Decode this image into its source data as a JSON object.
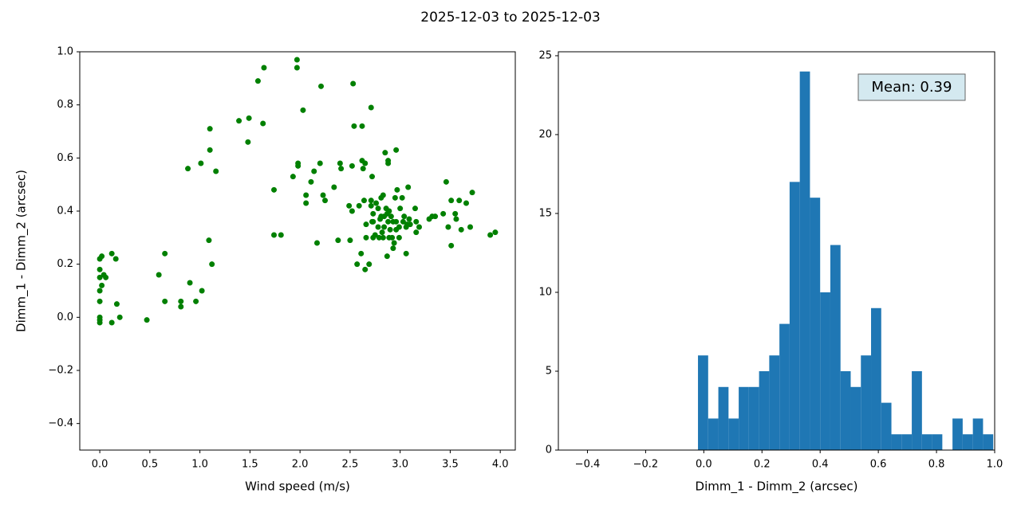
{
  "title": "2025-12-03 to 2025-12-03",
  "chart_data": [
    {
      "type": "scatter",
      "color": "green",
      "xlabel": "Wind speed (m/s)",
      "ylabel": "Dimm_1 - Dimm_2 (arcsec)",
      "xlim": [
        -0.2,
        4.15
      ],
      "ylim": [
        -0.5,
        1.0
      ],
      "xticks": [
        {
          "value": 0,
          "label": "0.0"
        },
        {
          "value": 0.5,
          "label": "0.5"
        },
        {
          "value": 1,
          "label": "1.0"
        },
        {
          "value": 1.5,
          "label": "1.5"
        },
        {
          "value": 2,
          "label": "2.0"
        },
        {
          "value": 2.5,
          "label": "2.5"
        },
        {
          "value": 3,
          "label": "3.0"
        },
        {
          "value": 3.5,
          "label": "3.5"
        },
        {
          "value": 4,
          "label": "4.0"
        }
      ],
      "yticks": [
        {
          "value": -0.4,
          "label": "−0.4"
        },
        {
          "value": -0.2,
          "label": "−0.2"
        },
        {
          "value": 0,
          "label": "0.0"
        },
        {
          "value": 0.2,
          "label": "0.2"
        },
        {
          "value": 0.4,
          "label": "0.4"
        },
        {
          "value": 0.6,
          "label": "0.6"
        },
        {
          "value": 0.8,
          "label": "0.8"
        },
        {
          "value": 1,
          "label": "1.0"
        }
      ],
      "x": [
        0,
        0.02,
        0.12,
        0.16,
        0,
        0.04,
        0.06,
        0,
        0.02,
        0,
        0,
        0.17,
        0,
        0,
        0,
        0.2,
        0.12,
        0.47,
        0.59,
        0.65,
        0.65,
        0.81,
        0.81,
        0.9,
        0.96,
        1.02,
        1.09,
        1.12,
        0.88,
        1.01,
        1.1,
        1.1,
        1.16,
        1.39,
        1.49,
        1.48,
        1.58,
        1.64,
        1.63,
        1.74,
        1.74,
        1.81,
        1.97,
        1.97,
        2.03,
        1.93,
        1.98,
        1.98,
        2.06,
        2.06,
        2.11,
        2.14,
        2.17,
        2.21,
        2.2,
        2.23,
        2.25,
        2.34,
        2.38,
        2.4,
        2.41,
        2.5,
        2.49,
        2.52,
        2.52,
        2.53,
        2.54,
        2.59,
        2.57,
        2.61,
        2.62,
        2.63,
        2.62,
        2.65,
        2.64,
        2.65,
        2.66,
        2.66,
        2.69,
        2.71,
        2.71,
        2.72,
        2.71,
        2.72,
        2.73,
        2.73,
        2.73,
        2.75,
        2.76,
        2.78,
        2.78,
        2.79,
        2.8,
        2.81,
        2.81,
        2.82,
        2.83,
        2.83,
        2.84,
        2.84,
        2.85,
        2.86,
        2.87,
        2.87,
        2.88,
        2.88,
        2.88,
        2.89,
        2.89,
        2.9,
        2.91,
        2.92,
        2.93,
        2.93,
        2.94,
        2.95,
        2.96,
        2.96,
        2.96,
        2.97,
        2.99,
        2.99,
        3.0,
        3.02,
        3.03,
        3.04,
        3.06,
        3.06,
        3.07,
        3.08,
        3.09,
        3.1,
        3.15,
        3.16,
        3.16,
        3.19,
        3.29,
        3.32,
        3.35,
        3.43,
        3.46,
        3.48,
        3.51,
        3.51,
        3.55,
        3.56,
        3.59,
        3.61,
        3.66,
        3.7,
        3.72,
        3.9,
        3.95
      ],
      "values": [
        0.22,
        0.23,
        0.24,
        0.22,
        0.18,
        0.16,
        0.15,
        0.15,
        0.12,
        0.1,
        0.06,
        0.05,
        0,
        -0.01,
        -0.02,
        0,
        -0.02,
        -0.01,
        0.16,
        0.24,
        0.06,
        0.06,
        0.04,
        0.13,
        0.06,
        0.1,
        0.29,
        0.2,
        0.56,
        0.58,
        0.63,
        0.71,
        0.55,
        0.74,
        0.75,
        0.66,
        0.89,
        0.94,
        0.73,
        0.48,
        0.31,
        0.31,
        0.97,
        0.94,
        0.78,
        0.53,
        0.58,
        0.57,
        0.46,
        0.43,
        0.51,
        0.55,
        0.28,
        0.87,
        0.58,
        0.46,
        0.44,
        0.49,
        0.29,
        0.58,
        0.56,
        0.29,
        0.42,
        0.4,
        0.57,
        0.88,
        0.72,
        0.42,
        0.2,
        0.24,
        0.59,
        0.56,
        0.72,
        0.58,
        0.44,
        0.18,
        0.35,
        0.3,
        0.2,
        0.79,
        0.44,
        0.53,
        0.42,
        0.36,
        0.36,
        0.39,
        0.3,
        0.31,
        0.43,
        0.41,
        0.34,
        0.3,
        0.37,
        0.45,
        0.38,
        0.32,
        0.46,
        0.3,
        0.38,
        0.34,
        0.62,
        0.41,
        0.23,
        0.39,
        0.59,
        0.58,
        0.36,
        0.3,
        0.4,
        0.33,
        0.38,
        0.3,
        0.36,
        0.26,
        0.28,
        0.45,
        0.33,
        0.63,
        0.36,
        0.48,
        0.34,
        0.3,
        0.41,
        0.45,
        0.36,
        0.38,
        0.34,
        0.24,
        0.35,
        0.49,
        0.37,
        0.35,
        0.41,
        0.36,
        0.32,
        0.34,
        0.37,
        0.38,
        0.38,
        0.39,
        0.51,
        0.34,
        0.27,
        0.44,
        0.39,
        0.37,
        0.44,
        0.33,
        0.43,
        0.34,
        0.47,
        0.31,
        0.32
      ]
    },
    {
      "type": "histogram",
      "color": "#1f77b4",
      "xlabel": "Dimm_1 - Dimm_2 (arcsec)",
      "annotation": "Mean: 0.39",
      "xlim": [
        -0.5,
        1.0
      ],
      "ylim": [
        0,
        25.25
      ],
      "xticks": [
        {
          "value": -0.4,
          "label": "−0.4"
        },
        {
          "value": -0.2,
          "label": "−0.2"
        },
        {
          "value": 0,
          "label": "0.0"
        },
        {
          "value": 0.2,
          "label": "0.2"
        },
        {
          "value": 0.4,
          "label": "0.4"
        },
        {
          "value": 0.6,
          "label": "0.6"
        },
        {
          "value": 0.8,
          "label": "0.8"
        },
        {
          "value": 1,
          "label": "1.0"
        }
      ],
      "yticks": [
        0,
        5,
        10,
        15,
        20,
        25
      ],
      "bins": [
        -0.02,
        0.015,
        0.05,
        0.085,
        0.12,
        0.155,
        0.19,
        0.225,
        0.26,
        0.295,
        0.33,
        0.365,
        0.4,
        0.435,
        0.47,
        0.505,
        0.54,
        0.575,
        0.61,
        0.645,
        0.68,
        0.715,
        0.75,
        0.785,
        0.82,
        0.855,
        0.89,
        0.925,
        0.96,
        0.995
      ],
      "values": [
        6,
        2,
        4,
        2,
        4,
        4,
        5,
        6,
        8,
        17,
        24,
        16,
        10,
        13,
        5,
        4,
        6,
        9,
        3,
        1,
        1,
        5,
        1,
        1,
        0,
        2,
        1,
        2,
        1
      ]
    }
  ]
}
